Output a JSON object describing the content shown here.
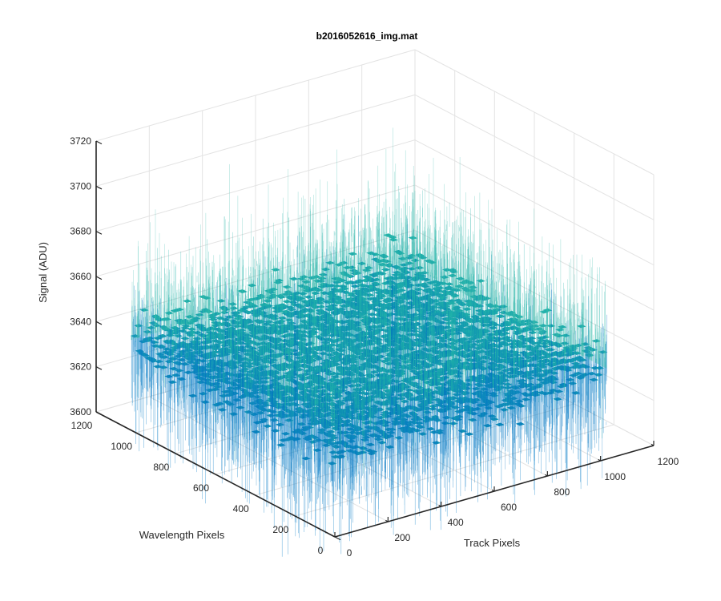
{
  "chart_data": {
    "type": "surface",
    "title": "b2016052616_img.mat",
    "xlabel": "Track Pixels",
    "ylabel": "Wavelength Pixels",
    "zlabel": "Signal (ADU)",
    "xlim": [
      0,
      1200
    ],
    "ylim": [
      0,
      1200
    ],
    "zlim": [
      3600,
      3720
    ],
    "x_ticks": [
      "0",
      "200",
      "400",
      "600",
      "800",
      "1000",
      "1200"
    ],
    "y_ticks": [
      "0",
      "200",
      "400",
      "600",
      "800",
      "1000",
      "1200"
    ],
    "z_ticks": [
      "3600",
      "3620",
      "3640",
      "3660",
      "3680",
      "3700",
      "3720"
    ],
    "surface_extent": {
      "x": [
        0,
        1024
      ],
      "y": [
        0,
        1024
      ]
    },
    "mean_signal": 3640,
    "noise_range": [
      3605,
      3705
    ],
    "grid": true,
    "colormap": "parula",
    "colors": {
      "low": "#0072bd",
      "mid": "#20b2aa",
      "high": "#c8c850"
    }
  }
}
